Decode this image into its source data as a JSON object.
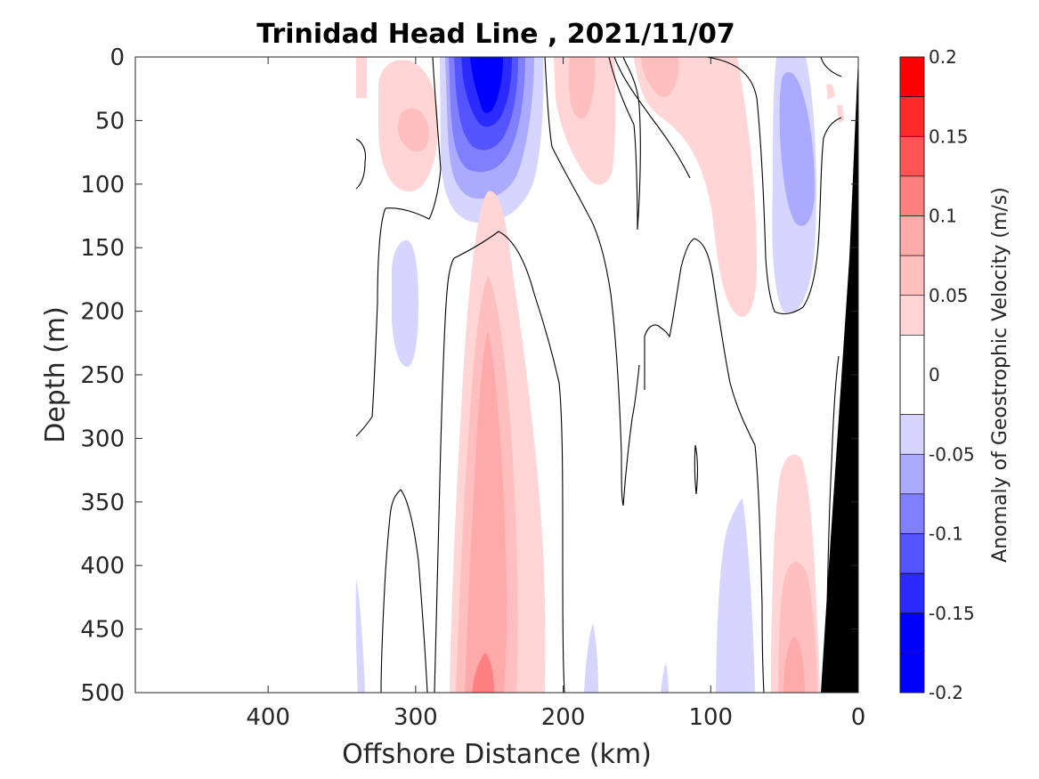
{
  "chart_data": {
    "type": "heatmap",
    "title": "Trinidad Head Line , 2021/11/07",
    "xlabel": "Offshore Distance (km)",
    "ylabel": "Depth (m)",
    "xlim": [
      490,
      0
    ],
    "ylim": [
      0,
      500
    ],
    "x_reversed": true,
    "y_reversed": true,
    "x_ticks": [
      400,
      300,
      200,
      100,
      0
    ],
    "x_tick_labels": [
      "400",
      "300",
      "200",
      "100",
      "0"
    ],
    "y_ticks": [
      0,
      50,
      100,
      150,
      200,
      250,
      300,
      350,
      400,
      450,
      500
    ],
    "y_tick_labels": [
      "0",
      "50",
      "100",
      "150",
      "200",
      "250",
      "300",
      "350",
      "400",
      "450",
      "500"
    ],
    "colorbar": {
      "label": "Anomaly of Geostrophic Velocity (m/s)",
      "range": [
        -0.2,
        0.2
      ],
      "ticks": [
        0.2,
        0.15,
        0.1,
        0.05,
        0,
        -0.05,
        -0.1,
        -0.15,
        -0.2
      ],
      "tick_labels": [
        "0.2",
        "0.15",
        "0.1",
        "0.05",
        "0",
        "-0.05",
        "-0.1",
        "-0.15",
        "-0.2"
      ],
      "levels": [
        {
          "min": 0.175,
          "max": 0.2,
          "color": "#ff0000"
        },
        {
          "min": 0.15,
          "max": 0.175,
          "color": "#ff2b2b"
        },
        {
          "min": 0.125,
          "max": 0.15,
          "color": "#ff5555"
        },
        {
          "min": 0.1,
          "max": 0.125,
          "color": "#ff8080"
        },
        {
          "min": 0.075,
          "max": 0.1,
          "color": "#ffaaaa"
        },
        {
          "min": 0.05,
          "max": 0.075,
          "color": "#ffbfbf"
        },
        {
          "min": 0.025,
          "max": 0.05,
          "color": "#ffd5d5"
        },
        {
          "min": -0.025,
          "max": 0.025,
          "color": "#ffffff"
        },
        {
          "min": -0.05,
          "max": -0.025,
          "color": "#d5d5ff"
        },
        {
          "min": -0.075,
          "max": -0.05,
          "color": "#aaaaff"
        },
        {
          "min": -0.1,
          "max": -0.075,
          "color": "#8080ff"
        },
        {
          "min": -0.125,
          "max": -0.1,
          "color": "#5555ff"
        },
        {
          "min": -0.15,
          "max": -0.125,
          "color": "#2b2bff"
        },
        {
          "min": -0.175,
          "max": -0.15,
          "color": "#0000ff"
        },
        {
          "min": -0.2,
          "max": -0.175,
          "color": "#0000ff"
        }
      ]
    },
    "features": [
      {
        "name": "negative-core",
        "distance_km": 252,
        "depth_m": 50,
        "value": -0.15
      },
      {
        "name": "positive-core",
        "distance_km": 255,
        "depth_m": 480,
        "value": 0.1
      },
      {
        "name": "nearshore-negative",
        "distance_km": 45,
        "depth_m": 100,
        "value": -0.075
      },
      {
        "name": "nearshore-positive",
        "distance_km": 45,
        "depth_m": 450,
        "value": 0.1
      }
    ],
    "bathymetry": {
      "color": "#000000",
      "points": [
        [
          0,
          0
        ],
        [
          0,
          500
        ],
        [
          25,
          500
        ]
      ]
    }
  }
}
